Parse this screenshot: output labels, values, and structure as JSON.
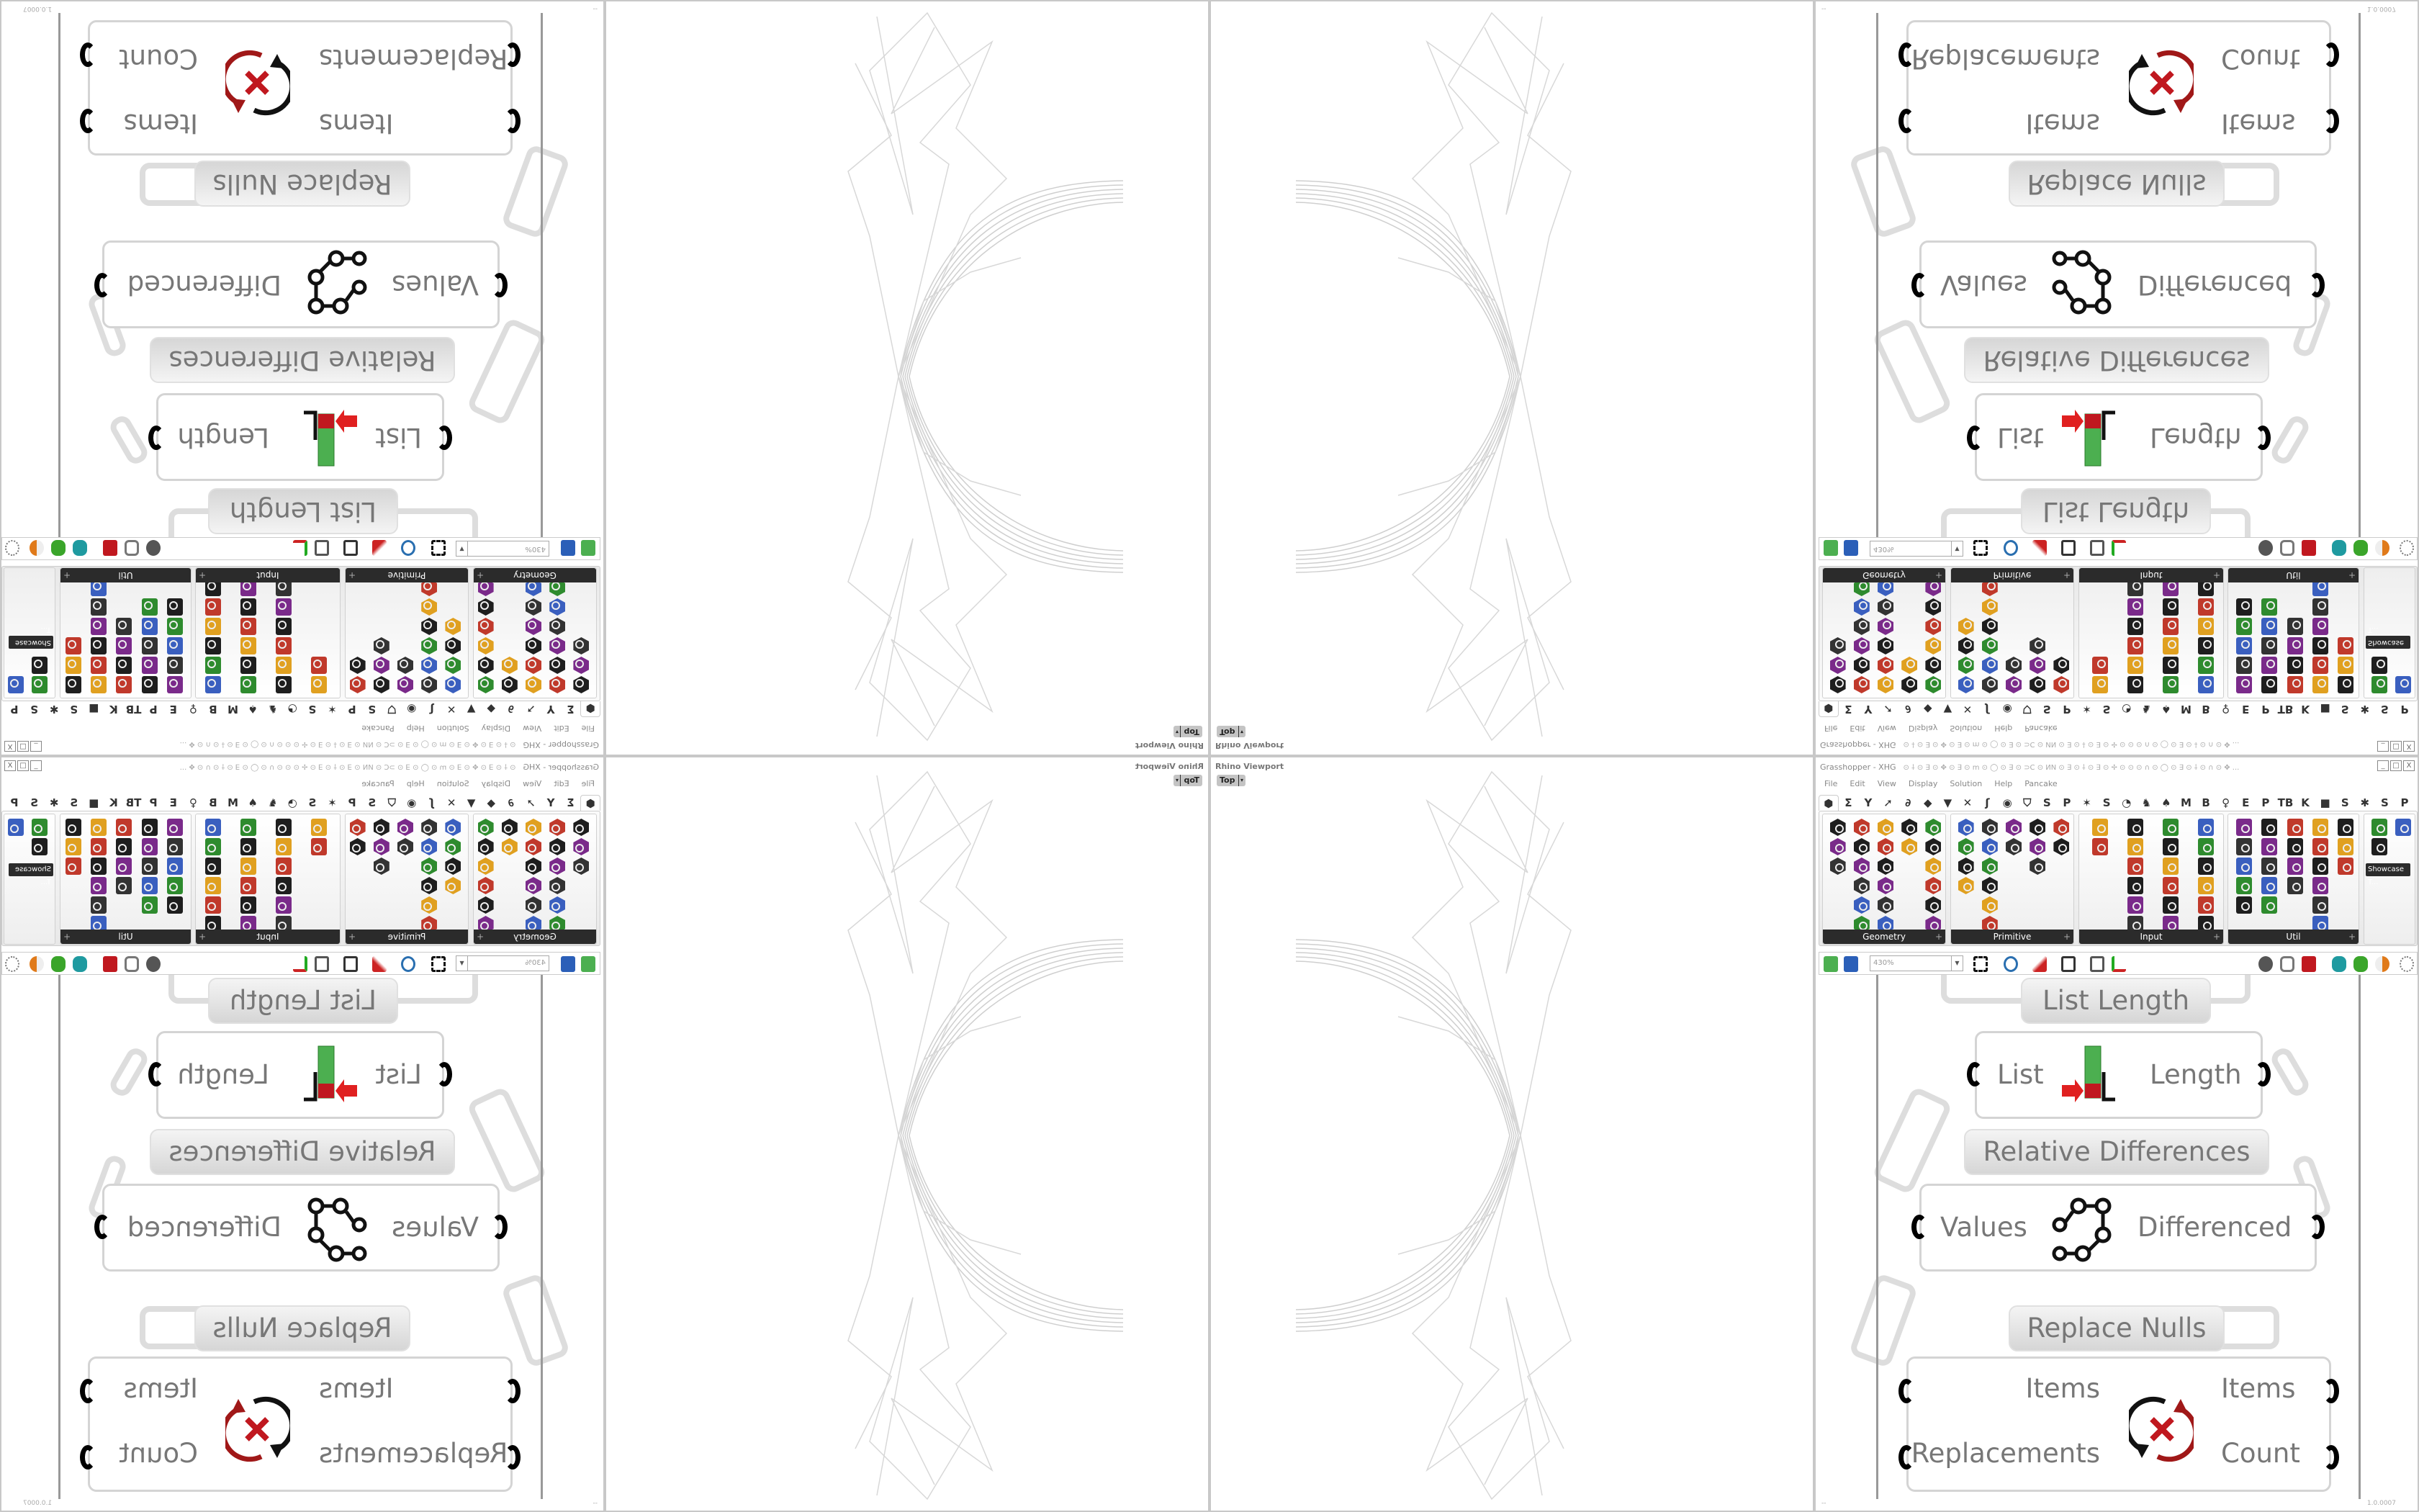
{
  "rhino": {
    "viewport_label": "Rhino Viewport",
    "view_name": "Top",
    "view_arrow": "▾"
  },
  "window": {
    "title": "Grasshopper - XHG",
    "title_deco": "⊙ ⸸ ⊙ ∃ ⊙ ✥ ⊙ ∃ ⊙ m ⊙ ◯ ⊙ ∃ ⊙ ⊃C ⊙ ИN ⊙ ∃ ⊙ ⸸ ⊙ ∃ ⊙ ✢ ⊙ ⊙ ⊙ ∩ ⊙ ◯ ⊙ ∃ ⊙ ⸸ ⊙ ∩ ⊙ ✥ ...",
    "buttons": [
      "_",
      "□",
      "X"
    ]
  },
  "menu": [
    "File",
    "Edit",
    "View",
    "Display",
    "Solution",
    "Help",
    "Pancake"
  ],
  "tabs": [
    "⬢",
    "Σ",
    "Y",
    "➚",
    "∂",
    "◆",
    "▼",
    "✕",
    "ʃ",
    "◉",
    "⛉",
    "S",
    "P",
    "✶",
    "S",
    "◔",
    "♞",
    "♠",
    "M",
    "B",
    "♀",
    "E",
    "P",
    "TB",
    "K",
    "■",
    "S",
    "✱",
    "S",
    "P"
  ],
  "ribbon": {
    "panels": [
      {
        "label": "Geometry",
        "cols": [
          3,
          6,
          6,
          2,
          6
        ]
      },
      {
        "label": "Primitive",
        "cols": [
          4,
          6,
          2,
          3,
          2
        ]
      },
      {
        "label": "Input",
        "cols": [
          2,
          6,
          6,
          6
        ]
      },
      {
        "label": "Util",
        "cols": [
          5,
          5,
          4,
          6,
          3
        ]
      },
      {
        "label": "Showcase T...",
        "cols": [
          2,
          1
        ]
      }
    ],
    "icon_colors": [
      "#1e1e1e",
      "#1e1e1e",
      "#333333",
      "#c0392b",
      "#2e8b2e",
      "#7a2a8a",
      "#e0a020",
      "#3a5fbf"
    ]
  },
  "toolbar": {
    "zoom_value": "430%"
  },
  "components": {
    "list_length": {
      "label": "List Length",
      "input": "List",
      "output": "Length"
    },
    "relative_differences": {
      "label": "Relative Differences",
      "input": "Values",
      "output": "Differenced"
    },
    "replace_nulls": {
      "label": "Replace Nulls",
      "inputs": [
        "Items",
        "Replacements"
      ],
      "outputs": [
        "Items",
        "Count"
      ]
    }
  },
  "status": {
    "version": "1.0.0007",
    "left": "--"
  },
  "colors": {
    "wire": "#cfcfcf",
    "accent_red": "#c0181f",
    "accent_green": "#3aa52a"
  }
}
